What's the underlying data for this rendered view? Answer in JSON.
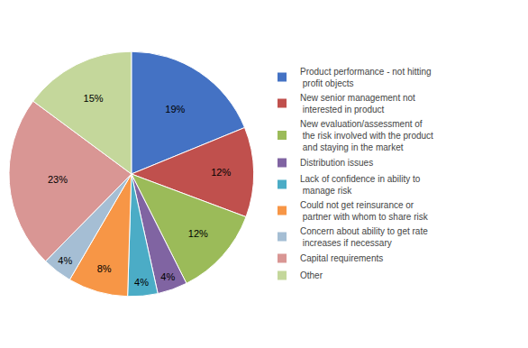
{
  "chart_data": {
    "type": "pie",
    "categories": [
      "Product performance - not hitting\n profit objects",
      "New senior management not\n interested in product",
      "New evaluation/assessment of\n the risk involved with the product\n and staying in the market",
      "Distribution issues",
      "Lack of confidence in ability to\n manage risk",
      "Could not get reinsurance or\n partner with whom to share risk",
      "Concern about ability to get rate\n increases if necessary",
      "Capital requirements",
      "Other"
    ],
    "values": [
      19,
      12,
      12,
      4,
      4,
      8,
      4,
      23,
      15
    ],
    "value_labels": [
      "19%",
      "12%",
      "12%",
      "4%",
      "4%",
      "8%",
      "4%",
      "23%",
      "15%"
    ],
    "data_labels": true,
    "colors": [
      "#4472C4",
      "#C0504D",
      "#9BBB59",
      "#8064A2",
      "#4BACC6",
      "#F79646",
      "#A5BED4",
      "#D99694",
      "#C4D79B"
    ],
    "legend": "right"
  }
}
